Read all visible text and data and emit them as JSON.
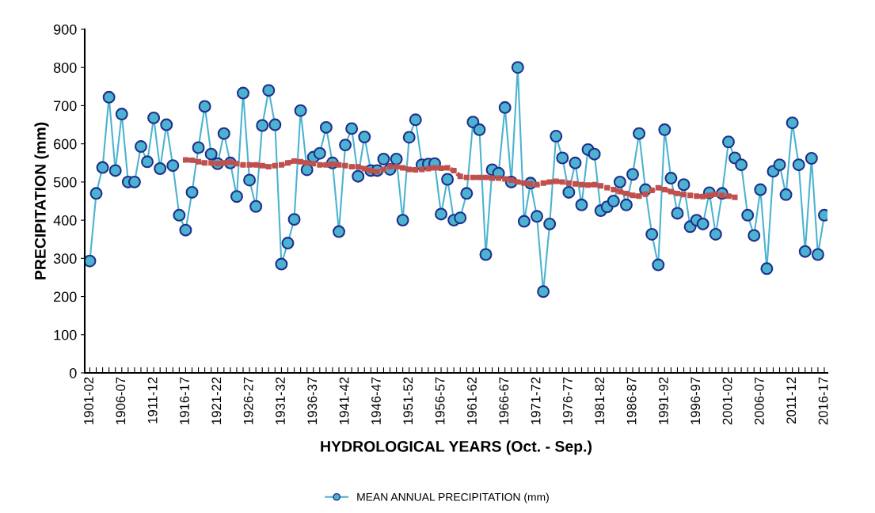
{
  "chart_data": {
    "type": "line",
    "xlabel": "HYDROLOGICAL YEARS (Oct. - Sep.)",
    "ylabel": "PRECIPITATION (mm)",
    "categories": [
      "1901-02",
      null,
      null,
      null,
      null,
      "1906-07",
      null,
      null,
      null,
      null,
      "1911-12",
      null,
      null,
      null,
      null,
      "1916-17",
      null,
      null,
      null,
      null,
      "1921-22",
      null,
      null,
      null,
      null,
      "1926-27",
      null,
      null,
      null,
      null,
      "1931-32",
      null,
      null,
      null,
      null,
      "1936-37",
      null,
      null,
      null,
      null,
      "1941-42",
      null,
      null,
      null,
      null,
      "1946-47",
      null,
      null,
      null,
      null,
      "1951-52",
      null,
      null,
      null,
      null,
      "1956-57",
      null,
      null,
      null,
      null,
      "1961-62",
      null,
      null,
      null,
      null,
      "1966-67",
      null,
      null,
      null,
      null,
      "1971-72",
      null,
      null,
      null,
      null,
      "1976-77",
      null,
      null,
      null,
      null,
      "1981-82",
      null,
      null,
      null,
      null,
      "1986-87",
      null,
      null,
      null,
      null,
      "1991-92",
      null,
      null,
      null,
      null,
      "1996-97",
      null,
      null,
      null,
      null,
      "2001-02",
      null,
      null,
      null,
      null,
      "2006-07",
      null,
      null,
      null,
      null,
      "2011-12",
      null,
      null,
      null,
      null,
      "2016-17"
    ],
    "series": [
      {
        "name": "MEAN ANNUAL PRECIPITATION (mm)",
        "color": "#4bb3d1",
        "marker": "circle",
        "line_style": "solid",
        "values": [
          293,
          470,
          538,
          722,
          530,
          678,
          500,
          500,
          593,
          553,
          668,
          535,
          650,
          543,
          413,
          374,
          473,
          590,
          698,
          573,
          548,
          627,
          550,
          462,
          733,
          505,
          436,
          648,
          740,
          650,
          285,
          340,
          402,
          687,
          532,
          565,
          575,
          643,
          550,
          370,
          597,
          640,
          515,
          618,
          530,
          530,
          560,
          533,
          560,
          400,
          617,
          663,
          545,
          547,
          548,
          416,
          507,
          400,
          406,
          470,
          657,
          637,
          310,
          532,
          523,
          695,
          500,
          800,
          397,
          497,
          410,
          213,
          390,
          620,
          563,
          473,
          550,
          440,
          585,
          573,
          425,
          435,
          450,
          500,
          440,
          520,
          627,
          480,
          363,
          283,
          637,
          510,
          418,
          493,
          383,
          400,
          390,
          472,
          363,
          470,
          605,
          563,
          545,
          413,
          360,
          480,
          273,
          528,
          545,
          467,
          655,
          545,
          318,
          562,
          310,
          413
        ]
      },
      {
        "color": "#c0504d",
        "marker": "square",
        "line_style": "dashed",
        "values": [
          null,
          null,
          null,
          null,
          null,
          null,
          null,
          null,
          null,
          null,
          null,
          null,
          null,
          null,
          null,
          558,
          557,
          553,
          550,
          550,
          548,
          550,
          552,
          548,
          545,
          545,
          545,
          543,
          540,
          543,
          545,
          550,
          555,
          553,
          550,
          548,
          545,
          545,
          547,
          545,
          543,
          540,
          540,
          535,
          530,
          527,
          533,
          540,
          540,
          537,
          533,
          532,
          533,
          535,
          537,
          536,
          537,
          530,
          515,
          512,
          512,
          512,
          512,
          510,
          510,
          508,
          505,
          500,
          497,
          495,
          493,
          497,
          500,
          502,
          500,
          497,
          495,
          493,
          492,
          493,
          490,
          485,
          480,
          475,
          470,
          465,
          463,
          468,
          478,
          485,
          480,
          475,
          470,
          467,
          465,
          463,
          462,
          465,
          468,
          465,
          463,
          460,
          null,
          null,
          null,
          null,
          null,
          null,
          null,
          null,
          null,
          null,
          null,
          null,
          null,
          null
        ]
      }
    ],
    "ylim": [
      0,
      900
    ],
    "yticks": [
      0,
      100,
      200,
      300,
      400,
      500,
      600,
      700,
      800,
      900
    ],
    "grid": false,
    "legend": "bottom"
  }
}
